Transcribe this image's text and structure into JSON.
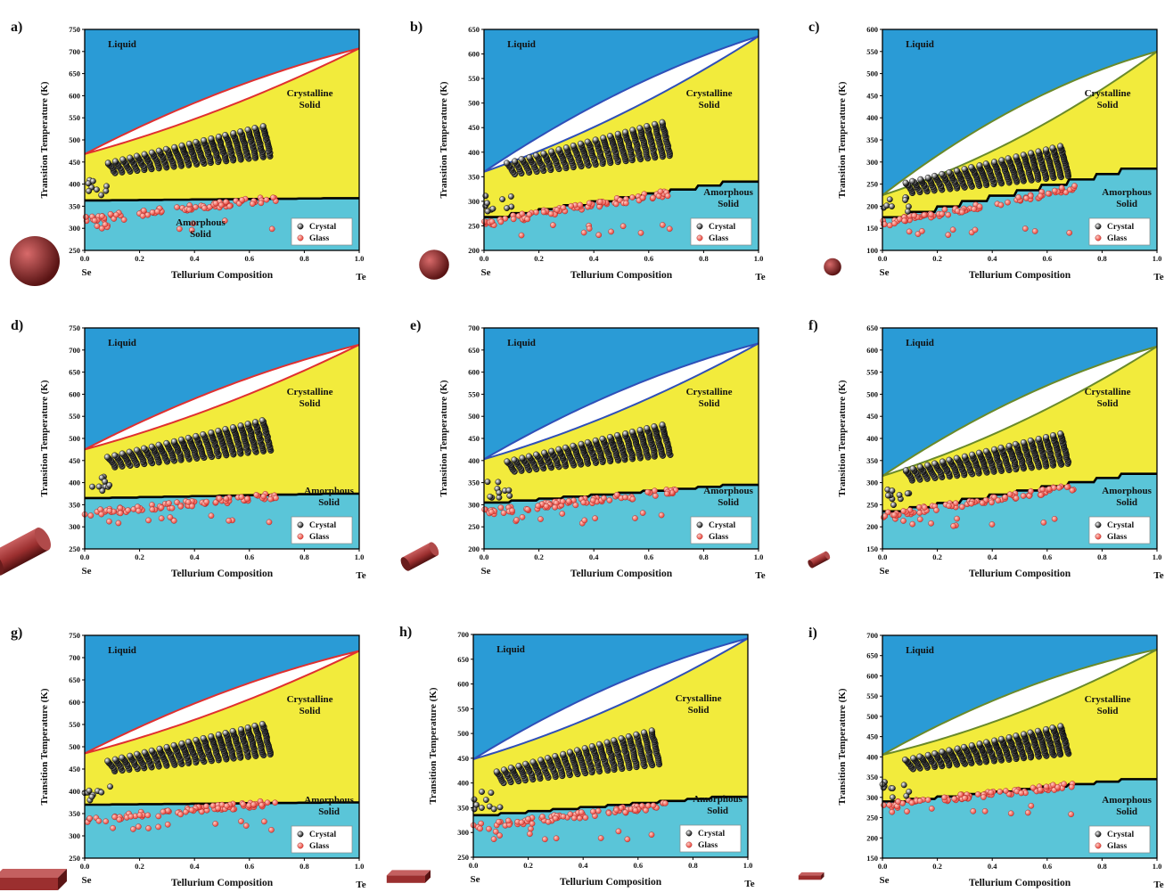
{
  "figure": {
    "xlabel": "Tellurium Composition",
    "ylabel": "Transition Temperature (K)",
    "x_left_label": "Se",
    "x_right_label": "Te",
    "region_labels": {
      "liquid": "Liquid",
      "crystalline": [
        "Crystalline",
        "Solid"
      ],
      "amorphous": [
        "Amorphous",
        "Solid"
      ]
    },
    "legend": {
      "crystal": "Crystal",
      "glass": "Glass"
    },
    "colors": {
      "liquid": "#2a9bd6",
      "crystalline": "#f2eb3c",
      "amorphous": "#5ac5d8",
      "crystal_marker": "#111111",
      "glass_marker": "#e8443a",
      "particle": "#9b2f2f"
    },
    "x_ticks": [
      "0.0",
      "0.2",
      "0.4",
      "0.6",
      "0.8",
      "1.0"
    ]
  },
  "chart_data": [
    {
      "panel": "a)",
      "type": "scatter",
      "shape": "sphere",
      "shape_size": "large",
      "ylim": [
        250,
        750
      ],
      "yticks": [
        250,
        300,
        350,
        400,
        450,
        500,
        550,
        600,
        650,
        700,
        750
      ],
      "liquidus_left": 468,
      "liquidus_right": 707,
      "lens_bow": 38,
      "glass_transition": [
        363,
        368
      ],
      "curve_color": "#e03030",
      "amorphous_label_pos": "bottom-center",
      "crystal_base": 425,
      "glass_base": 320,
      "glass_top": 368
    },
    {
      "panel": "b)",
      "type": "scatter",
      "shape": "sphere",
      "shape_size": "medium",
      "ylim": [
        200,
        650
      ],
      "yticks": [
        200,
        250,
        300,
        350,
        400,
        450,
        500,
        550,
        600,
        650
      ],
      "liquidus_left": 360,
      "liquidus_right": 636,
      "lens_bow": 45,
      "glass_transition": [
        268,
        340
      ],
      "curve_color": "#2f4fb8",
      "amorphous_label_pos": "right",
      "crystal_base": 355,
      "glass_base": 255,
      "glass_top": 320
    },
    {
      "panel": "c)",
      "type": "scatter",
      "shape": "sphere",
      "shape_size": "small",
      "ylim": [
        100,
        600
      ],
      "yticks": [
        100,
        150,
        200,
        250,
        300,
        350,
        400,
        450,
        500,
        550,
        600
      ],
      "liquidus_left": 225,
      "liquidus_right": 550,
      "lens_bow": 70,
      "glass_transition": [
        175,
        285
      ],
      "curve_color": "#6a8a2a",
      "amorphous_label_pos": "right",
      "crystal_base": 230,
      "glass_base": 160,
      "glass_top": 240
    },
    {
      "panel": "d)",
      "type": "scatter",
      "shape": "cylinder",
      "shape_size": "large",
      "ylim": [
        250,
        750
      ],
      "yticks": [
        250,
        300,
        350,
        400,
        450,
        500,
        550,
        600,
        650,
        700,
        750
      ],
      "liquidus_left": 475,
      "liquidus_right": 712,
      "lens_bow": 38,
      "glass_transition": [
        365,
        375
      ],
      "curve_color": "#e03030",
      "amorphous_label_pos": "right",
      "crystal_base": 435,
      "glass_base": 330,
      "glass_top": 370
    },
    {
      "panel": "e)",
      "type": "scatter",
      "shape": "cylinder",
      "shape_size": "medium",
      "ylim": [
        200,
        700
      ],
      "yticks": [
        200,
        250,
        300,
        350,
        400,
        450,
        500,
        550,
        600,
        650,
        700
      ],
      "liquidus_left": 403,
      "liquidus_right": 665,
      "lens_bow": 45,
      "glass_transition": [
        305,
        345
      ],
      "curve_color": "#2f4fb8",
      "amorphous_label_pos": "right",
      "crystal_base": 375,
      "glass_base": 283,
      "glass_top": 330
    },
    {
      "panel": "f)",
      "type": "scatter",
      "shape": "cylinder",
      "shape_size": "small",
      "ylim": [
        150,
        650
      ],
      "yticks": [
        150,
        200,
        250,
        300,
        350,
        400,
        450,
        500,
        550,
        600,
        650
      ],
      "liquidus_left": 315,
      "liquidus_right": 608,
      "lens_bow": 55,
      "glass_transition": [
        235,
        320
      ],
      "curve_color": "#6a8a2a",
      "amorphous_label_pos": "right",
      "crystal_base": 305,
      "glass_base": 225,
      "glass_top": 290
    },
    {
      "panel": "g)",
      "type": "scatter",
      "shape": "slab",
      "shape_size": "large",
      "ylim": [
        250,
        750
      ],
      "yticks": [
        250,
        300,
        350,
        400,
        450,
        500,
        550,
        600,
        650,
        700,
        750
      ],
      "liquidus_left": 485,
      "liquidus_right": 715,
      "lens_bow": 38,
      "glass_transition": [
        370,
        375
      ],
      "curve_color": "#e03030",
      "amorphous_label_pos": "right",
      "crystal_base": 445,
      "glass_base": 335,
      "glass_top": 375
    },
    {
      "panel": "h)",
      "type": "scatter",
      "shape": "slab",
      "shape_size": "medium",
      "ylim": [
        250,
        700
      ],
      "yticks": [
        250,
        300,
        350,
        400,
        450,
        500,
        550,
        600,
        650,
        700
      ],
      "liquidus_left": 448,
      "liquidus_right": 692,
      "lens_bow": 45,
      "glass_transition": [
        335,
        372
      ],
      "curve_color": "#2f4fb8",
      "amorphous_label_pos": "right",
      "crystal_base": 400,
      "glass_base": 310,
      "glass_top": 355
    },
    {
      "panel": "i)",
      "type": "scatter",
      "shape": "slab",
      "shape_size": "small",
      "ylim": [
        150,
        700
      ],
      "yticks": [
        150,
        200,
        250,
        300,
        350,
        400,
        450,
        500,
        550,
        600,
        650,
        700
      ],
      "liquidus_left": 405,
      "liquidus_right": 665,
      "lens_bow": 55,
      "glass_transition": [
        290,
        345
      ],
      "curve_color": "#6a8a2a",
      "amorphous_label_pos": "right",
      "crystal_base": 370,
      "glass_base": 280,
      "glass_top": 330
    }
  ]
}
